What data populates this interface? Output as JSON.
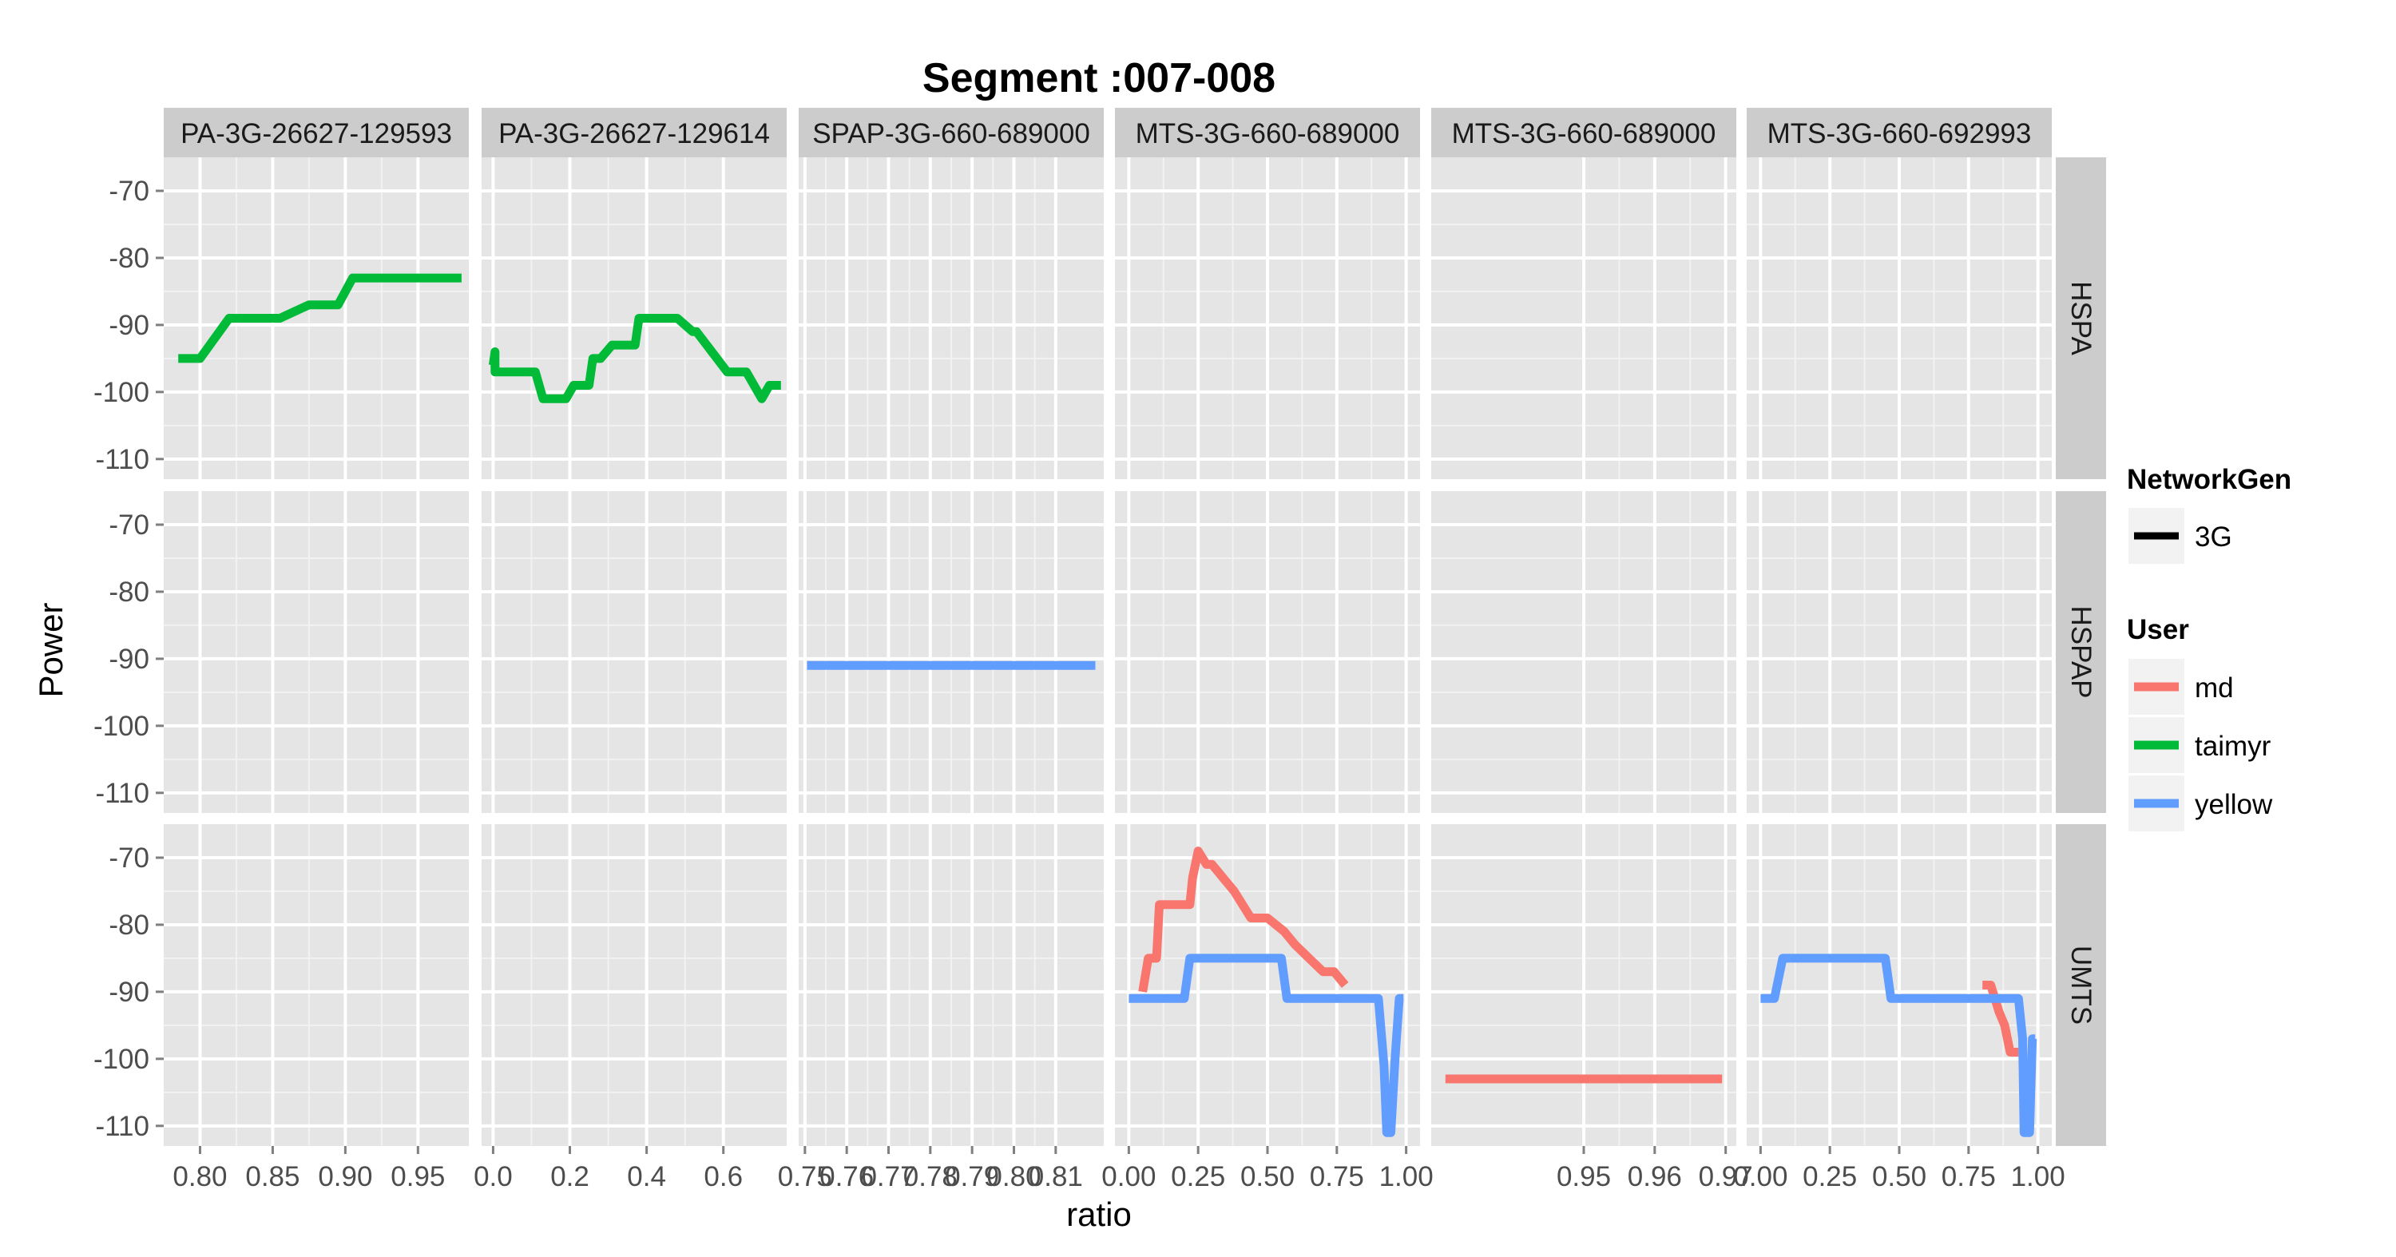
{
  "chart_data": {
    "type": "line",
    "title": "Segment :007-008",
    "xlabel": "ratio",
    "ylabel": "Power",
    "ylim": [
      -113,
      -65
    ],
    "y_ticks": [
      -70,
      -80,
      -90,
      -100,
      -110
    ],
    "grid": true,
    "legend_placement": "right",
    "colors": {
      "panel_bg": "#e5e5e5",
      "strip_bg": "#cccccc",
      "grid_major": "#ffffff",
      "md": "#f8766d",
      "taimyr": "#00ba38",
      "yellow": "#619cff"
    },
    "columns": [
      {
        "label": "PA-3G-26627-129593",
        "xlim": [
          0.775,
          0.985
        ],
        "ticks": [
          0.8,
          0.85,
          0.9,
          0.95
        ],
        "tick_labels": [
          "0.80",
          "0.85",
          "0.90",
          "0.95"
        ]
      },
      {
        "label": "PA-3G-26627-129614",
        "xlim": [
          -0.03,
          0.765
        ],
        "ticks": [
          0.0,
          0.2,
          0.4,
          0.6
        ],
        "tick_labels": [
          "0.0",
          "0.2",
          "0.4",
          "0.6"
        ]
      },
      {
        "label": "SPAP-3G-660-689000",
        "xlim": [
          0.7485,
          0.8215
        ],
        "ticks": [
          0.75,
          0.76,
          0.77,
          0.78,
          0.79,
          0.8,
          0.81
        ],
        "tick_labels": [
          "0.75",
          "0.76",
          "0.77",
          "0.78",
          "0.79",
          "0.80",
          "0.81"
        ]
      },
      {
        "label": "MTS-3G-660-689000",
        "xlim": [
          -0.05,
          1.05
        ],
        "ticks": [
          0.0,
          0.25,
          0.5,
          0.75,
          1.0
        ],
        "tick_labels": [
          "0.00",
          "0.25",
          "0.50",
          "0.75",
          "1.00"
        ]
      },
      {
        "label": "MTS-3G-660-689000",
        "xlim": [
          0.9285,
          0.9715
        ],
        "ticks": [
          0.95,
          0.96,
          0.97
        ],
        "tick_labels": [
          "0.95",
          "0.96",
          "0.97"
        ]
      },
      {
        "label": "MTS-3G-660-692993",
        "xlim": [
          -0.05,
          1.05
        ],
        "ticks": [
          0.0,
          0.25,
          0.5,
          0.75,
          1.0
        ],
        "tick_labels": [
          "0.00",
          "0.25",
          "0.50",
          "0.75",
          "1.00"
        ]
      }
    ],
    "rows": [
      "HSPA",
      "HSPAP",
      "UMTS"
    ],
    "series": [
      {
        "user": "taimyr",
        "row": 0,
        "col": 0,
        "x": [
          0.785,
          0.8,
          0.82,
          0.855,
          0.875,
          0.895,
          0.905,
          0.98
        ],
        "y": [
          -95,
          -95,
          -89,
          -89,
          -87,
          -87,
          -83,
          -83
        ]
      },
      {
        "user": "taimyr",
        "row": 0,
        "col": 1,
        "x": [
          0.0,
          0.005,
          0.005,
          0.11,
          0.13,
          0.19,
          0.21,
          0.25,
          0.26,
          0.28,
          0.31,
          0.37,
          0.38,
          0.48,
          0.52,
          0.53,
          0.61,
          0.66,
          0.7,
          0.72,
          0.75
        ],
        "y": [
          -96,
          -94,
          -97,
          -97,
          -101,
          -101,
          -99,
          -99,
          -95,
          -95,
          -93,
          -93,
          -89,
          -89,
          -91,
          -91,
          -97,
          -97,
          -101,
          -99,
          -99
        ]
      },
      {
        "user": "yellow",
        "row": 1,
        "col": 2,
        "x": [
          0.7505,
          0.8195
        ],
        "y": [
          -91,
          -91
        ]
      },
      {
        "user": "md",
        "row": 2,
        "col": 3,
        "x": [
          0.05,
          0.07,
          0.1,
          0.11,
          0.13,
          0.22,
          0.23,
          0.25,
          0.28,
          0.3,
          0.34,
          0.38,
          0.44,
          0.5,
          0.56,
          0.6,
          0.65,
          0.7,
          0.74,
          0.78
        ],
        "y": [
          -90,
          -85,
          -85,
          -77,
          -77,
          -77,
          -73,
          -69,
          -71,
          -71,
          -73,
          -75,
          -79,
          -79,
          -81,
          -83,
          -85,
          -87,
          -87,
          -89
        ]
      },
      {
        "user": "yellow",
        "row": 2,
        "col": 3,
        "x": [
          0.0,
          0.2,
          0.22,
          0.55,
          0.57,
          0.9,
          0.92,
          0.93,
          0.945,
          0.96,
          0.975,
          0.99
        ],
        "y": [
          -91,
          -91,
          -85,
          -85,
          -91,
          -91,
          -101,
          -111,
          -111,
          -100,
          -91,
          -91
        ]
      },
      {
        "user": "md",
        "row": 2,
        "col": 4,
        "x": [
          0.9305,
          0.9695
        ],
        "y": [
          -103,
          -103
        ]
      },
      {
        "user": "md",
        "row": 2,
        "col": 5,
        "x": [
          0.8,
          0.83,
          0.86,
          0.88,
          0.9,
          0.93
        ],
        "y": [
          -89,
          -89,
          -93,
          -95,
          -99,
          -99
        ]
      },
      {
        "user": "yellow",
        "row": 2,
        "col": 5,
        "x": [
          0.0,
          0.05,
          0.08,
          0.45,
          0.47,
          0.93,
          0.945,
          0.95,
          0.97,
          0.98,
          0.99
        ],
        "y": [
          -91,
          -91,
          -85,
          -85,
          -91,
          -91,
          -97,
          -111,
          -111,
          -97,
          -97
        ]
      }
    ]
  },
  "legend": {
    "network_title": "NetworkGen",
    "network_items": [
      {
        "label": "3G",
        "color": "#000000"
      }
    ],
    "user_title": "User",
    "user_items": [
      {
        "label": "md",
        "color": "#f8766d"
      },
      {
        "label": "taimyr",
        "color": "#00ba38"
      },
      {
        "label": "yellow",
        "color": "#619cff"
      }
    ]
  }
}
